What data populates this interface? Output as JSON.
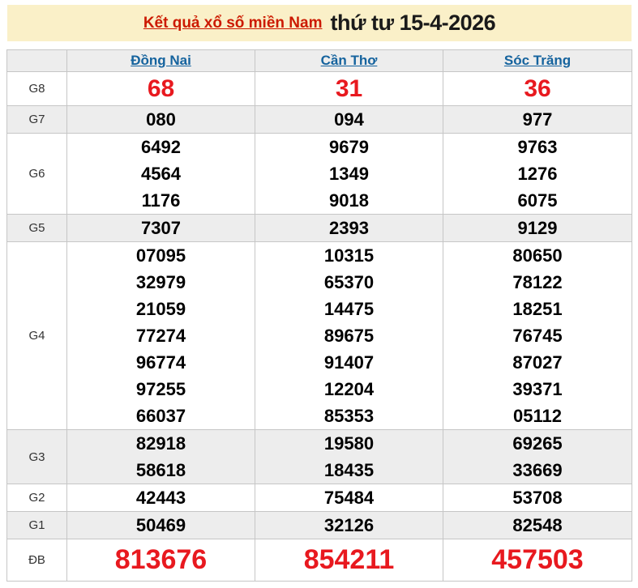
{
  "header": {
    "title_link": "Kết quả xổ số miền Nam",
    "title_date": "thứ tư 15-4-2026",
    "background": "#faf0c8",
    "link_color": "#cc1a00"
  },
  "colors": {
    "highlight_red": "#e8191f",
    "province_link_blue": "#15639e",
    "striped_row_gray": "#ededed",
    "border_gray": "#c6c6c6"
  },
  "table": {
    "corner_label": "",
    "columns": [
      "Đồng Nai",
      "Cần Thơ",
      "Sóc Trăng"
    ],
    "rows": [
      {
        "label": "G8",
        "big": true,
        "cells": [
          [
            "68"
          ],
          [
            "31"
          ],
          [
            "36"
          ]
        ]
      },
      {
        "label": "G7",
        "big": false,
        "cells": [
          [
            "080"
          ],
          [
            "094"
          ],
          [
            "977"
          ]
        ]
      },
      {
        "label": "G6",
        "big": false,
        "cells": [
          [
            "6492",
            "4564",
            "1176"
          ],
          [
            "9679",
            "1349",
            "9018"
          ],
          [
            "9763",
            "1276",
            "6075"
          ]
        ]
      },
      {
        "label": "G5",
        "big": false,
        "cells": [
          [
            "7307"
          ],
          [
            "2393"
          ],
          [
            "9129"
          ]
        ]
      },
      {
        "label": "G4",
        "big": false,
        "cells": [
          [
            "07095",
            "32979",
            "21059",
            "77274",
            "96774",
            "97255",
            "66037"
          ],
          [
            "10315",
            "65370",
            "14475",
            "89675",
            "91407",
            "12204",
            "85353"
          ],
          [
            "80650",
            "78122",
            "18251",
            "76745",
            "87027",
            "39371",
            "05112"
          ]
        ]
      },
      {
        "label": "G3",
        "big": false,
        "cells": [
          [
            "82918",
            "58618"
          ],
          [
            "19580",
            "18435"
          ],
          [
            "69265",
            "33669"
          ]
        ]
      },
      {
        "label": "G2",
        "big": false,
        "cells": [
          [
            "42443"
          ],
          [
            "75484"
          ],
          [
            "53708"
          ]
        ]
      },
      {
        "label": "G1",
        "big": false,
        "cells": [
          [
            "50469"
          ],
          [
            "32126"
          ],
          [
            "82548"
          ]
        ]
      },
      {
        "label": "ĐB",
        "big": true,
        "cells": [
          [
            "813676"
          ],
          [
            "854211"
          ],
          [
            "457503"
          ]
        ]
      }
    ]
  }
}
